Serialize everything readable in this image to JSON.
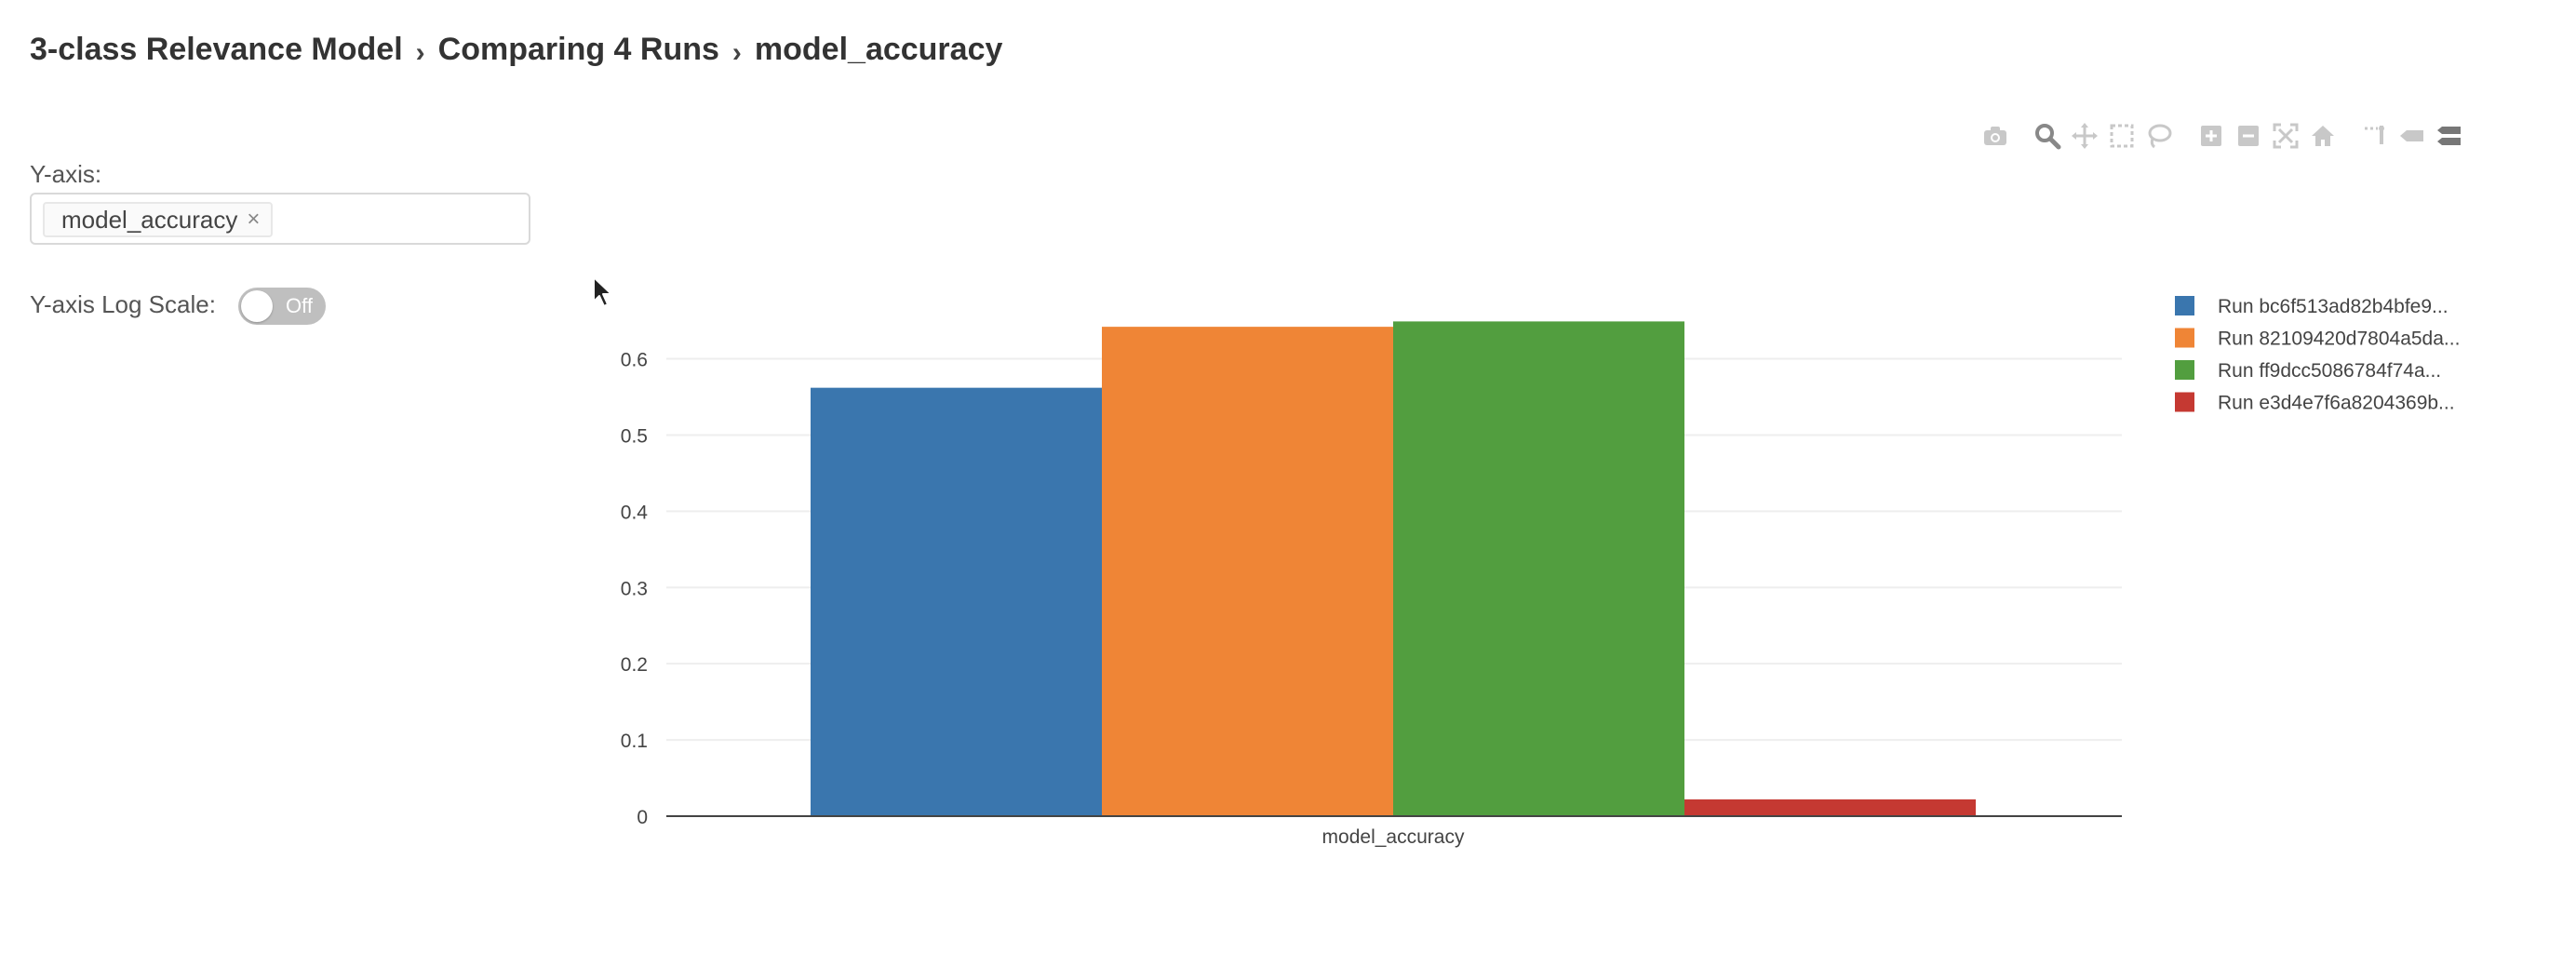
{
  "breadcrumb": {
    "items": [
      "3-class Relevance Model",
      "Comparing 4 Runs",
      "model_accuracy"
    ],
    "separator": "›"
  },
  "controls": {
    "yaxis_label": "Y-axis:",
    "yaxis_selected": "model_accuracy",
    "tag_close": "×",
    "log_scale_label": "Y-axis Log Scale:",
    "log_scale_state": "Off"
  },
  "modebar": {
    "icons": [
      "camera-icon",
      "zoom-icon",
      "pan-icon",
      "box-select-icon",
      "lasso-select-icon",
      "zoom-in-icon",
      "zoom-out-icon",
      "autoscale-icon",
      "reset-axes-icon",
      "spike-lines-icon",
      "hover-closest-icon",
      "hover-compare-icon"
    ]
  },
  "chart_data": {
    "type": "bar",
    "categories": [
      "model_accuracy"
    ],
    "series": [
      {
        "name": "Run bc6f513ad82b4bfe9...",
        "values": [
          0.562
        ],
        "color": "#3a76ae"
      },
      {
        "name": "Run 82109420d7804a5da...",
        "values": [
          0.642
        ],
        "color": "#ef8536"
      },
      {
        "name": "Run ff9dcc5086784f74a...",
        "values": [
          0.649
        ],
        "color": "#529e3f"
      },
      {
        "name": "Run e3d4e7f6a8204369b...",
        "values": [
          0.022
        ],
        "color": "#c53932"
      }
    ],
    "yticks": [
      "0",
      "0.1",
      "0.2",
      "0.3",
      "0.4",
      "0.5",
      "0.6"
    ],
    "ylim": [
      0,
      0.68
    ],
    "grid": true,
    "legend_position": "right"
  }
}
